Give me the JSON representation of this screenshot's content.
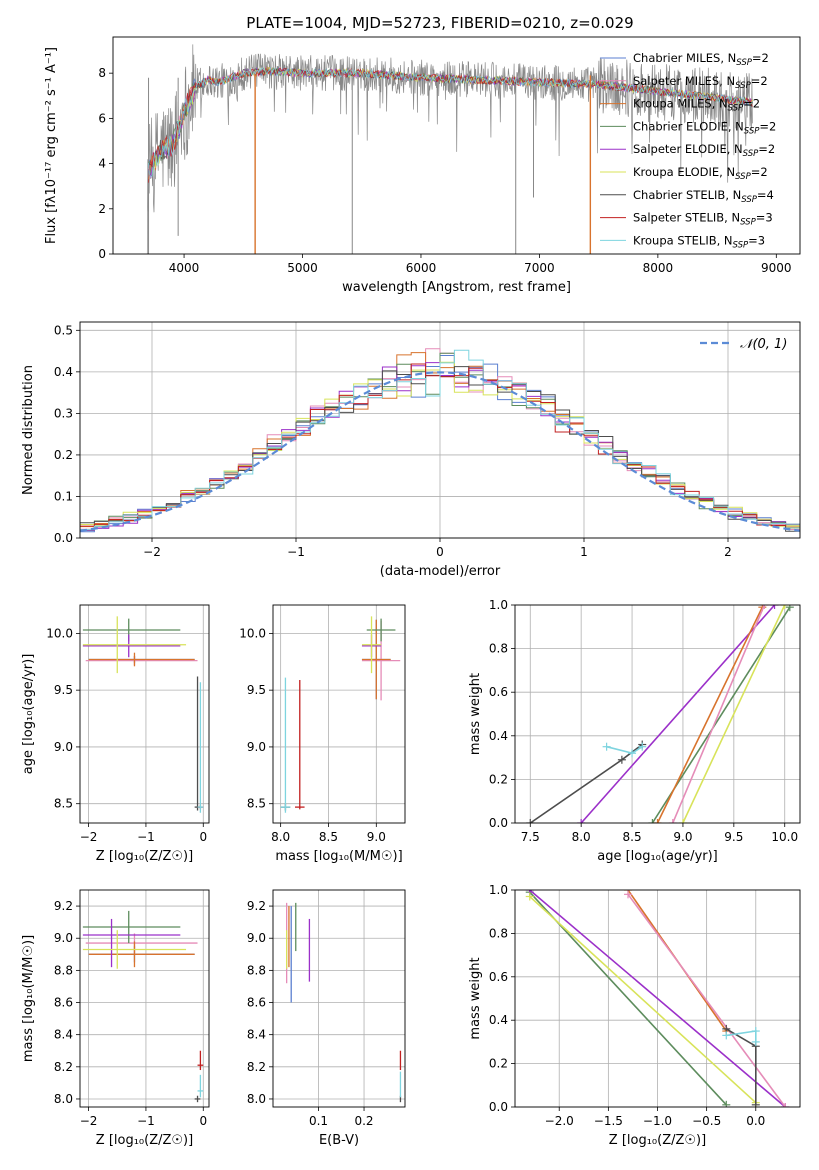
{
  "colors": {
    "Chabrier MILES": "#5b7fd0",
    "Salpeter MILES": "#e58cb8",
    "Kroupa MILES": "#d8732d",
    "Chabrier ELODIE": "#5d8c5d",
    "Salpeter ELODIE": "#9b30c9",
    "Kroupa ELODIE": "#d8e35a",
    "Chabrier STELIB": "#4d4d4d",
    "Salpeter STELIB": "#c22020",
    "Kroupa STELIB": "#7ed4df",
    "data": "#888888",
    "normal": "#5b8bd6"
  },
  "chart_data": [
    {
      "id": "spectrum",
      "type": "line",
      "title": "PLATE=1004, MJD=52723, FIBERID=0210, z=0.029",
      "xlabel": "wavelength [Angstrom, rest frame]",
      "ylabel": "Flux [fλ10⁻¹⁷ erg cm⁻² s⁻¹ A⁻¹]",
      "xlim": [
        3400,
        9200
      ],
      "ylim": [
        0,
        9.6
      ],
      "xticks": [
        4000,
        5000,
        6000,
        7000,
        8000,
        9000
      ],
      "yticks": [
        0,
        2,
        4,
        6,
        8
      ],
      "grid": false,
      "legend_position": "top-right",
      "legend": [
        {
          "base": "Chabrier MILES, N",
          "sub": "SSP",
          "tail": "=2"
        },
        {
          "base": "Salpeter MILES, N",
          "sub": "SSP",
          "tail": "=2"
        },
        {
          "base": "Kroupa MILES, N",
          "sub": "SSP",
          "tail": "=2"
        },
        {
          "base": "Chabrier ELODIE, N",
          "sub": "SSP",
          "tail": "=2"
        },
        {
          "base": "Salpeter ELODIE, N",
          "sub": "SSP",
          "tail": "=2"
        },
        {
          "base": "Kroupa ELODIE, N",
          "sub": "SSP",
          "tail": "=2"
        },
        {
          "base": "Chabrier STELIB, N",
          "sub": "SSP",
          "tail": "=4"
        },
        {
          "base": "Salpeter STELIB, N",
          "sub": "SSP",
          "tail": "=3"
        },
        {
          "base": "Kroupa STELIB, N",
          "sub": "SSP",
          "tail": "=3"
        }
      ],
      "continuum": [
        [
          3700,
          3.6
        ],
        [
          3800,
          4.6
        ],
        [
          3900,
          4.8
        ],
        [
          4000,
          6.3
        ],
        [
          4100,
          7.4
        ],
        [
          4200,
          7.7
        ],
        [
          4300,
          7.6
        ],
        [
          4500,
          8.0
        ],
        [
          4700,
          8.1
        ],
        [
          5000,
          8.0
        ],
        [
          5500,
          8.0
        ],
        [
          6000,
          7.8
        ],
        [
          6500,
          7.7
        ],
        [
          7000,
          7.6
        ],
        [
          7500,
          7.5
        ],
        [
          8000,
          7.2
        ],
        [
          8500,
          6.9
        ],
        [
          8800,
          6.7
        ]
      ],
      "data_drops": [
        [
          3700,
          0.0
        ],
        [
          3950,
          0.8
        ],
        [
          5420,
          0.0
        ],
        [
          6800,
          0.0
        ],
        [
          6950,
          2.5
        ]
      ],
      "model_drops": [
        [
          4600,
          0.0
        ],
        [
          7430,
          0.0
        ]
      ]
    },
    {
      "id": "residuals",
      "type": "histogram",
      "xlabel": "(data-model)/error",
      "ylabel": "Normed distribution",
      "xlim": [
        -2.5,
        2.5
      ],
      "ylim": [
        0,
        0.52
      ],
      "xticks": [
        -2,
        -1,
        0,
        1,
        2
      ],
      "yticks": [
        0.0,
        0.1,
        0.2,
        0.3,
        0.4,
        0.5
      ],
      "grid": true,
      "legend_position": "top-right",
      "legend": [
        "𝒩(0, 1)"
      ],
      "bin_width": 0.1
    },
    {
      "id": "age_vs_Z",
      "type": "errorbar",
      "xlabel": "Z [log₁₀(Z/Z☉)]",
      "ylabel": "age  [log₁₀(age/yr)]",
      "xlim": [
        -2.15,
        0.1
      ],
      "ylim": [
        8.33,
        10.25
      ],
      "xticks": [
        -2,
        -1,
        0
      ],
      "yticks": [
        8.5,
        9.0,
        9.5,
        10.0
      ],
      "grid": true,
      "points": [
        {
          "model": "Chabrier MILES",
          "x": -1.2,
          "xerr": [
            0.8,
            1.05
          ],
          "y": 9.77,
          "yerr": [
            0.03,
            0.03
          ]
        },
        {
          "model": "Salpeter MILES",
          "x": -1.2,
          "xerr": [
            0.85,
            1.1
          ],
          "y": 9.76,
          "yerr": [
            0.04,
            0.04
          ]
        },
        {
          "model": "Kroupa MILES",
          "x": -1.2,
          "xerr": [
            0.8,
            1.05
          ],
          "y": 9.77,
          "yerr": [
            0.06,
            0.06
          ]
        },
        {
          "model": "Chabrier ELODIE",
          "x": -1.3,
          "xerr": [
            0.8,
            0.9
          ],
          "y": 10.03,
          "yerr": [
            0.1,
            0.1
          ]
        },
        {
          "model": "Salpeter ELODIE",
          "x": -1.3,
          "xerr": [
            0.8,
            0.9
          ],
          "y": 9.89,
          "yerr": [
            0.1,
            0.1
          ]
        },
        {
          "model": "Kroupa ELODIE",
          "x": -1.5,
          "xerr": [
            0.6,
            1.2
          ],
          "y": 9.9,
          "yerr": [
            0.25,
            0.25
          ]
        },
        {
          "model": "Chabrier STELIB",
          "x": -0.1,
          "xerr": [
            0.05,
            0.05
          ],
          "y": 8.47,
          "yerr": [
            0.03,
            1.15
          ]
        },
        {
          "model": "Salpeter STELIB",
          "x": -0.05,
          "xerr": [
            0.05,
            0.05
          ],
          "y": 8.47,
          "yerr": [
            0.02,
            0.02
          ]
        },
        {
          "model": "Kroupa STELIB",
          "x": -0.05,
          "xerr": [
            0.05,
            0.05
          ],
          "y": 8.47,
          "yerr": [
            0.05,
            1.1
          ]
        }
      ]
    },
    {
      "id": "age_vs_mass",
      "type": "errorbar",
      "xlabel": "mass [log₁₀(M/M☉)]",
      "ylabel": "",
      "xlim": [
        7.92,
        9.3
      ],
      "ylim": [
        8.33,
        10.25
      ],
      "xticks": [
        8.0,
        8.5,
        9.0
      ],
      "yticks": [
        8.5,
        9.0,
        9.5,
        10.0
      ],
      "grid": true,
      "points": [
        {
          "model": "Chabrier MILES",
          "x": 9.0,
          "xerr": [
            0.15,
            0.15
          ],
          "y": 9.77,
          "yerr": [
            0.35,
            0.35
          ]
        },
        {
          "model": "Salpeter MILES",
          "x": 9.05,
          "xerr": [
            0.2,
            0.2
          ],
          "y": 9.76,
          "yerr": [
            0.35,
            0.35
          ]
        },
        {
          "model": "Kroupa MILES",
          "x": 9.0,
          "xerr": [
            0.15,
            0.15
          ],
          "y": 9.77,
          "yerr": [
            0.35,
            0.35
          ]
        },
        {
          "model": "Chabrier ELODIE",
          "x": 9.05,
          "xerr": [
            0.15,
            0.15
          ],
          "y": 10.03,
          "yerr": [
            0.1,
            0.1
          ]
        },
        {
          "model": "Salpeter ELODIE",
          "x": 8.95,
          "xerr": [
            0.1,
            0.1
          ],
          "y": 9.89,
          "yerr": [
            0.1,
            0.1
          ]
        },
        {
          "model": "Kroupa ELODIE",
          "x": 8.95,
          "xerr": [
            0.1,
            0.1
          ],
          "y": 9.9,
          "yerr": [
            0.25,
            0.25
          ]
        },
        {
          "model": "Chabrier STELIB",
          "x": 8.05,
          "xerr": [
            0.05,
            0.05
          ],
          "y": 8.47,
          "yerr": [
            0.03,
            0.03
          ]
        },
        {
          "model": "Salpeter STELIB",
          "x": 8.2,
          "xerr": [
            0.05,
            0.05
          ],
          "y": 8.47,
          "yerr": [
            0.02,
            1.12
          ]
        },
        {
          "model": "Kroupa STELIB",
          "x": 8.05,
          "xerr": [
            0.05,
            0.05
          ],
          "y": 8.47,
          "yerr": [
            0.05,
            1.14
          ]
        }
      ]
    },
    {
      "id": "weight_vs_age",
      "type": "line",
      "xlabel": "age  [log₁₀(age/yr)]",
      "ylabel": "mass weight",
      "xlim": [
        7.35,
        10.15
      ],
      "ylim": [
        0,
        1
      ],
      "xticks": [
        7.5,
        8.0,
        8.5,
        9.0,
        9.5,
        10.0
      ],
      "yticks": [
        0.0,
        0.2,
        0.4,
        0.6,
        0.8,
        1.0
      ],
      "grid": true,
      "lines": [
        {
          "model": "Chabrier ELODIE",
          "x": [
            8.7,
            10.05
          ],
          "y": [
            0.0,
            0.99
          ]
        },
        {
          "model": "Salpeter ELODIE",
          "x": [
            8.0,
            9.9
          ],
          "y": [
            0.0,
            1.0
          ]
        },
        {
          "model": "Kroupa ELODIE",
          "x": [
            9.0,
            10.0
          ],
          "y": [
            0.0,
            1.0
          ]
        },
        {
          "model": "Kroupa MILES",
          "x": [
            8.75,
            9.78
          ],
          "y": [
            0.0,
            0.99
          ]
        },
        {
          "model": "Salpeter MILES",
          "x": [
            8.9,
            9.8
          ],
          "y": [
            0.0,
            1.0
          ]
        },
        {
          "model": "Chabrier STELIB",
          "x": [
            7.5,
            8.4,
            8.6
          ],
          "y": [
            0.0,
            0.29,
            0.36
          ]
        },
        {
          "model": "Kroupa STELIB",
          "x": [
            8.25,
            8.5,
            8.6
          ],
          "y": [
            0.35,
            0.32,
            0.35
          ]
        }
      ]
    },
    {
      "id": "mass_vs_Z",
      "type": "errorbar",
      "xlabel": "Z [log₁₀(Z/Z☉)]",
      "ylabel": "mass [log₁₀(M/M☉)]",
      "xlim": [
        -2.15,
        0.1
      ],
      "ylim": [
        7.95,
        9.3
      ],
      "xticks": [
        -2,
        -1,
        0
      ],
      "yticks": [
        8.0,
        8.2,
        8.4,
        8.6,
        8.8,
        9.0,
        9.2
      ],
      "grid": true,
      "points": [
        {
          "model": "Chabrier MILES",
          "x": -1.2,
          "xerr": [
            0.8,
            1.05
          ],
          "y": 8.9,
          "yerr": [
            0.05,
            0.05
          ]
        },
        {
          "model": "Salpeter MILES",
          "x": -1.2,
          "xerr": [
            0.85,
            1.1
          ],
          "y": 8.97,
          "yerr": [
            0.06,
            0.06
          ]
        },
        {
          "model": "Kroupa MILES",
          "x": -1.2,
          "xerr": [
            0.8,
            1.05
          ],
          "y": 8.9,
          "yerr": [
            0.08,
            0.08
          ]
        },
        {
          "model": "Chabrier ELODIE",
          "x": -1.3,
          "xerr": [
            0.8,
            0.9
          ],
          "y": 9.07,
          "yerr": [
            0.1,
            0.1
          ]
        },
        {
          "model": "Salpeter ELODIE",
          "x": -1.6,
          "xerr": [
            0.5,
            1.2
          ],
          "y": 9.02,
          "yerr": [
            0.2,
            0.1
          ]
        },
        {
          "model": "Kroupa ELODIE",
          "x": -1.5,
          "xerr": [
            0.6,
            1.2
          ],
          "y": 8.93,
          "yerr": [
            0.12,
            0.12
          ]
        },
        {
          "model": "Chabrier STELIB",
          "x": -0.1,
          "xerr": [
            0.05,
            0.05
          ],
          "y": 8.0,
          "yerr": [
            0.02,
            0.02
          ]
        },
        {
          "model": "Salpeter STELIB",
          "x": -0.05,
          "xerr": [
            0.05,
            0.05
          ],
          "y": 8.21,
          "yerr": [
            0.03,
            0.09
          ]
        },
        {
          "model": "Kroupa STELIB",
          "x": -0.05,
          "xerr": [
            0.05,
            0.05
          ],
          "y": 8.05,
          "yerr": [
            0.04,
            0.1
          ]
        }
      ]
    },
    {
      "id": "mass_vs_ebv",
      "type": "errorbar",
      "xlabel": "E(B-V)",
      "ylabel": "",
      "xlim": [
        0.0,
        0.29
      ],
      "ylim": [
        7.95,
        9.3
      ],
      "xticks": [
        0.1,
        0.2
      ],
      "yticks": [
        8.0,
        8.2,
        8.4,
        8.6,
        8.8,
        9.0,
        9.2
      ],
      "grid": true,
      "points": [
        {
          "model": "Chabrier MILES",
          "x": 0.04,
          "xerr": [
            0.0,
            0.0
          ],
          "y": 8.9,
          "yerr": [
            0.3,
            0.3
          ]
        },
        {
          "model": "Salpeter MILES",
          "x": 0.03,
          "xerr": [
            0.0,
            0.0
          ],
          "y": 8.97,
          "yerr": [
            0.25,
            0.25
          ]
        },
        {
          "model": "Kroupa MILES",
          "x": 0.035,
          "xerr": [
            0.0,
            0.0
          ],
          "y": 8.9,
          "yerr": [
            0.08,
            0.3
          ]
        },
        {
          "model": "Chabrier ELODIE",
          "x": 0.05,
          "xerr": [
            0.0,
            0.0
          ],
          "y": 9.07,
          "yerr": [
            0.15,
            0.15
          ]
        },
        {
          "model": "Salpeter ELODIE",
          "x": 0.08,
          "xerr": [
            0.0,
            0.0
          ],
          "y": 8.9,
          "yerr": [
            0.17,
            0.22
          ]
        },
        {
          "model": "Kroupa ELODIE",
          "x": 0.03,
          "xerr": [
            0.0,
            0.0
          ],
          "y": 8.93,
          "yerr": [
            0.12,
            0.12
          ]
        },
        {
          "model": "Chabrier STELIB",
          "x": 0.28,
          "xerr": [
            0.0,
            0.0
          ],
          "y": 8.0,
          "yerr": [
            0.02,
            0.02
          ]
        },
        {
          "model": "Salpeter STELIB",
          "x": 0.28,
          "xerr": [
            0.0,
            0.0
          ],
          "y": 8.21,
          "yerr": [
            0.03,
            0.09
          ]
        },
        {
          "model": "Kroupa STELIB",
          "x": 0.28,
          "xerr": [
            0.0,
            0.0
          ],
          "y": 8.05,
          "yerr": [
            0.04,
            0.12
          ]
        }
      ]
    },
    {
      "id": "weight_vs_Z",
      "type": "line",
      "xlabel": "Z [log₁₀(Z/Z☉)]",
      "ylabel": "mass weight",
      "xlim": [
        -2.45,
        0.45
      ],
      "ylim": [
        0,
        1
      ],
      "xticks": [
        -2.0,
        -1.5,
        -1.0,
        -0.5,
        0.0
      ],
      "yticks": [
        0.0,
        0.2,
        0.4,
        0.6,
        0.8,
        1.0
      ],
      "grid": true,
      "lines": [
        {
          "model": "Chabrier ELODIE",
          "x": [
            -2.3,
            -0.3
          ],
          "y": [
            0.99,
            0.01
          ]
        },
        {
          "model": "Salpeter ELODIE",
          "x": [
            -2.3,
            0.3
          ],
          "y": [
            1.0,
            0.0
          ]
        },
        {
          "model": "Kroupa ELODIE",
          "x": [
            -2.3,
            0.0
          ],
          "y": [
            0.97,
            0.02
          ]
        },
        {
          "model": "Kroupa MILES",
          "x": [
            -1.3,
            -0.3
          ],
          "y": [
            1.0,
            0.35
          ]
        },
        {
          "model": "Salpeter MILES",
          "x": [
            -1.3,
            0.3
          ],
          "y": [
            0.98,
            0.0
          ]
        },
        {
          "model": "Chabrier STELIB",
          "x": [
            -0.3,
            0.0,
            0.0
          ],
          "y": [
            0.36,
            0.28,
            0.01
          ]
        },
        {
          "model": "Kroupa STELIB",
          "x": [
            -0.3,
            0.0,
            0.0
          ],
          "y": [
            0.33,
            0.35,
            0.3
          ]
        }
      ]
    }
  ]
}
